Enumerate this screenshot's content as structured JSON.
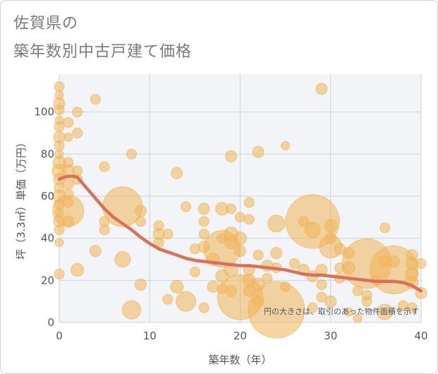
{
  "chart_data": {
    "type": "scatter",
    "title_line1": "佐賀県の",
    "title_line2": "築年数別中古戸建て価格",
    "xlabel": "築年数（年）",
    "ylabel": "坪（3.3㎡）単価（万円）",
    "xlim": [
      0,
      40
    ],
    "ylim": [
      0,
      118
    ],
    "x_ticks": [
      0,
      10,
      20,
      30,
      40
    ],
    "y_ticks": [
      0,
      20,
      40,
      60,
      80,
      100
    ],
    "annotation": "円の大きさは、取引のあった物件面積を示す",
    "colors": {
      "bubble": "#f0b55a",
      "trend": "#d9705a",
      "plot_bg": "#f2f4f7",
      "grid": "#c9d3df",
      "text": "#555555"
    },
    "trend_line": {
      "x": [
        0,
        0.5,
        1,
        1.5,
        2,
        3,
        4,
        5,
        6,
        7,
        8,
        9,
        10,
        11,
        12,
        13,
        14,
        15,
        16,
        17,
        18,
        19,
        20,
        21,
        22,
        23,
        24,
        25,
        26,
        27,
        28,
        29,
        30,
        31,
        32,
        33,
        34,
        35,
        36,
        37,
        38,
        39,
        40
      ],
      "y": [
        68,
        69,
        69.5,
        69.5,
        69,
        64,
        59,
        54,
        50,
        47,
        44,
        40.5,
        37.5,
        35,
        33.5,
        32,
        30.5,
        29.5,
        29,
        28.5,
        28,
        27.5,
        27,
        27,
        26.5,
        26,
        25.5,
        25,
        24,
        23,
        22.5,
        22.5,
        22,
        21.5,
        21,
        20.5,
        20,
        19.5,
        19.5,
        19.5,
        19,
        17.5,
        15
      ]
    },
    "points": [
      {
        "x": 0,
        "y": 112,
        "size": 7
      },
      {
        "x": 0,
        "y": 108,
        "size": 6
      },
      {
        "x": 0,
        "y": 104,
        "size": 8
      },
      {
        "x": 0,
        "y": 101,
        "size": 7
      },
      {
        "x": 0,
        "y": 96,
        "size": 6
      },
      {
        "x": 0,
        "y": 93,
        "size": 7
      },
      {
        "x": 0,
        "y": 88,
        "size": 8
      },
      {
        "x": 0,
        "y": 84,
        "size": 7
      },
      {
        "x": 0,
        "y": 80,
        "size": 6
      },
      {
        "x": 0,
        "y": 76,
        "size": 9
      },
      {
        "x": 0,
        "y": 72,
        "size": 10
      },
      {
        "x": 0,
        "y": 68,
        "size": 8
      },
      {
        "x": 0,
        "y": 64,
        "size": 7
      },
      {
        "x": 0,
        "y": 60,
        "size": 9
      },
      {
        "x": 0,
        "y": 56,
        "size": 7
      },
      {
        "x": 0,
        "y": 52,
        "size": 6
      },
      {
        "x": 0,
        "y": 48,
        "size": 8
      },
      {
        "x": 0,
        "y": 44,
        "size": 7
      },
      {
        "x": 0,
        "y": 38,
        "size": 6
      },
      {
        "x": 0,
        "y": 23,
        "size": 7
      },
      {
        "x": 1,
        "y": 95,
        "size": 7
      },
      {
        "x": 1,
        "y": 88,
        "size": 6
      },
      {
        "x": 1,
        "y": 76,
        "size": 7
      },
      {
        "x": 1,
        "y": 72,
        "size": 9
      },
      {
        "x": 1,
        "y": 66,
        "size": 8
      },
      {
        "x": 1,
        "y": 61,
        "size": 7
      },
      {
        "x": 1,
        "y": 57,
        "size": 7
      },
      {
        "x": 1,
        "y": 48,
        "size": 8
      },
      {
        "x": 1,
        "y": 53,
        "size": 22
      },
      {
        "x": 2,
        "y": 100,
        "size": 7
      },
      {
        "x": 2,
        "y": 90,
        "size": 7
      },
      {
        "x": 2,
        "y": 72,
        "size": 7
      },
      {
        "x": 2,
        "y": 68,
        "size": 7
      },
      {
        "x": 2,
        "y": 25,
        "size": 9
      },
      {
        "x": 4,
        "y": 106,
        "size": 7
      },
      {
        "x": 4,
        "y": 34,
        "size": 8
      },
      {
        "x": 5,
        "y": 74,
        "size": 7
      },
      {
        "x": 5,
        "y": 48,
        "size": 7
      },
      {
        "x": 5,
        "y": 44,
        "size": 7
      },
      {
        "x": 7,
        "y": 55,
        "size": 28
      },
      {
        "x": 7,
        "y": 30,
        "size": 11
      },
      {
        "x": 8,
        "y": 80,
        "size": 7
      },
      {
        "x": 8,
        "y": 6,
        "size": 13
      },
      {
        "x": 9,
        "y": 53,
        "size": 8
      },
      {
        "x": 9,
        "y": 48,
        "size": 7
      },
      {
        "x": 9,
        "y": 18,
        "size": 8
      },
      {
        "x": 11,
        "y": 46,
        "size": 7
      },
      {
        "x": 11,
        "y": 42,
        "size": 8
      },
      {
        "x": 11,
        "y": 38,
        "size": 7
      },
      {
        "x": 12,
        "y": 42,
        "size": 7
      },
      {
        "x": 12,
        "y": 11,
        "size": 7
      },
      {
        "x": 13,
        "y": 71,
        "size": 8
      },
      {
        "x": 13,
        "y": 17,
        "size": 9
      },
      {
        "x": 14,
        "y": 55,
        "size": 7
      },
      {
        "x": 14,
        "y": 10,
        "size": 14
      },
      {
        "x": 15,
        "y": 35,
        "size": 7
      },
      {
        "x": 15,
        "y": 24,
        "size": 7
      },
      {
        "x": 16,
        "y": 54,
        "size": 8
      },
      {
        "x": 16,
        "y": 48,
        "size": 7
      },
      {
        "x": 16,
        "y": 42,
        "size": 7
      },
      {
        "x": 16,
        "y": 36,
        "size": 8
      },
      {
        "x": 16,
        "y": 7,
        "size": 7
      },
      {
        "x": 17,
        "y": 30,
        "size": 9
      },
      {
        "x": 17,
        "y": 17,
        "size": 8
      },
      {
        "x": 18,
        "y": 54,
        "size": 9
      },
      {
        "x": 18,
        "y": 40,
        "size": 7
      },
      {
        "x": 18,
        "y": 35,
        "size": 26
      },
      {
        "x": 18,
        "y": 22,
        "size": 9
      },
      {
        "x": 18,
        "y": 16,
        "size": 7
      },
      {
        "x": 19,
        "y": 79,
        "size": 8
      },
      {
        "x": 19,
        "y": 54,
        "size": 7
      },
      {
        "x": 19,
        "y": 42,
        "size": 10
      },
      {
        "x": 19,
        "y": 38,
        "size": 9
      },
      {
        "x": 19,
        "y": 25,
        "size": 10
      },
      {
        "x": 19,
        "y": 15,
        "size": 8
      },
      {
        "x": 20,
        "y": 40,
        "size": 9
      },
      {
        "x": 20,
        "y": 34,
        "size": 8
      },
      {
        "x": 20,
        "y": 50,
        "size": 7
      },
      {
        "x": 20,
        "y": 12,
        "size": 32
      },
      {
        "x": 21,
        "y": 57,
        "size": 7
      },
      {
        "x": 21,
        "y": 49,
        "size": 7
      },
      {
        "x": 21,
        "y": 25,
        "size": 8
      },
      {
        "x": 21,
        "y": 20,
        "size": 9
      },
      {
        "x": 21,
        "y": 15,
        "size": 8
      },
      {
        "x": 22,
        "y": 81,
        "size": 8
      },
      {
        "x": 22,
        "y": 32,
        "size": 7
      },
      {
        "x": 22,
        "y": 18,
        "size": 9
      },
      {
        "x": 22,
        "y": 10,
        "size": 8
      },
      {
        "x": 23,
        "y": 27,
        "size": 8
      },
      {
        "x": 23,
        "y": 21,
        "size": 7
      },
      {
        "x": 24,
        "y": 47,
        "size": 12
      },
      {
        "x": 24,
        "y": 33,
        "size": 8
      },
      {
        "x": 24,
        "y": 26,
        "size": 7
      },
      {
        "x": 24,
        "y": 6,
        "size": 40
      },
      {
        "x": 25,
        "y": 84,
        "size": 6
      },
      {
        "x": 25,
        "y": 17,
        "size": 7
      },
      {
        "x": 26,
        "y": 28,
        "size": 7
      },
      {
        "x": 27,
        "y": 48,
        "size": 7
      },
      {
        "x": 27,
        "y": 25,
        "size": 8
      },
      {
        "x": 28,
        "y": 48,
        "size": 38
      },
      {
        "x": 28,
        "y": 44,
        "size": 11
      },
      {
        "x": 28,
        "y": 22,
        "size": 8
      },
      {
        "x": 28,
        "y": 7,
        "size": 7
      },
      {
        "x": 29,
        "y": 111,
        "size": 8
      },
      {
        "x": 29,
        "y": 25,
        "size": 8
      },
      {
        "x": 29,
        "y": 18,
        "size": 7
      },
      {
        "x": 29,
        "y": 12,
        "size": 7
      },
      {
        "x": 30,
        "y": 46,
        "size": 9
      },
      {
        "x": 30,
        "y": 40,
        "size": 8
      },
      {
        "x": 30,
        "y": 36,
        "size": 16
      },
      {
        "x": 30,
        "y": 10,
        "size": 8
      },
      {
        "x": 31,
        "y": 35,
        "size": 8
      },
      {
        "x": 31,
        "y": 26,
        "size": 7
      },
      {
        "x": 31,
        "y": 21,
        "size": 7
      },
      {
        "x": 32,
        "y": 33,
        "size": 8
      },
      {
        "x": 32,
        "y": 26,
        "size": 9
      },
      {
        "x": 32,
        "y": 5,
        "size": 6
      },
      {
        "x": 33,
        "y": 15,
        "size": 7
      },
      {
        "x": 33,
        "y": 2,
        "size": 6
      },
      {
        "x": 34,
        "y": 28,
        "size": 35
      },
      {
        "x": 34,
        "y": 13,
        "size": 7
      },
      {
        "x": 34,
        "y": 10,
        "size": 7
      },
      {
        "x": 35,
        "y": 20,
        "size": 7
      },
      {
        "x": 36,
        "y": 45,
        "size": 7
      },
      {
        "x": 36,
        "y": 29,
        "size": 8
      },
      {
        "x": 36,
        "y": 5,
        "size": 11
      },
      {
        "x": 37,
        "y": 25,
        "size": 34
      },
      {
        "x": 37,
        "y": 29,
        "size": 8
      },
      {
        "x": 38,
        "y": 8,
        "size": 7
      },
      {
        "x": 39,
        "y": 32,
        "size": 8
      },
      {
        "x": 39,
        "y": 28,
        "size": 9
      },
      {
        "x": 39,
        "y": 23,
        "size": 9
      },
      {
        "x": 39,
        "y": 19,
        "size": 9
      },
      {
        "x": 39,
        "y": 7,
        "size": 7
      },
      {
        "x": 40,
        "y": 28,
        "size": 7
      },
      {
        "x": 40,
        "y": 14,
        "size": 8
      }
    ]
  }
}
